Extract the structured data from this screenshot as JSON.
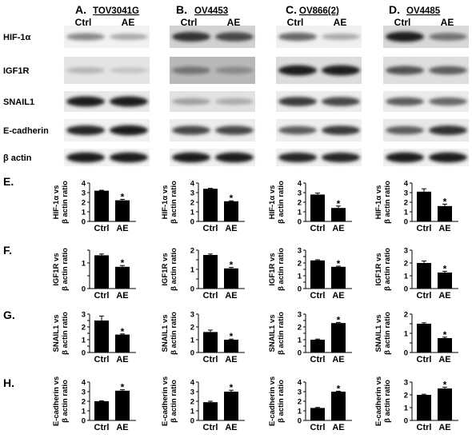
{
  "column_headers": [
    {
      "letter": "A.",
      "cell_line": "TOV3041G"
    },
    {
      "letter": "B.",
      "cell_line": "OV4453"
    },
    {
      "letter": "C.",
      "cell_line": "OV866(2)"
    },
    {
      "letter": "D.",
      "cell_line": "OV4485"
    }
  ],
  "lane_labels": [
    "Ctrl",
    "AE"
  ],
  "blot_rows": [
    "HIF-1α",
    "IGF1R",
    "SNAIL1",
    "E-cadherin",
    "β actin"
  ],
  "panel_letters": [
    "E.",
    "F.",
    "G.",
    "H."
  ],
  "star": "*",
  "chart_data": [
    {
      "type": "bar",
      "panel": "E.",
      "cell_line": "TOV3041G",
      "ylabel_line1": "HIF-1α vs",
      "ylabel_line2": "β actin ratio",
      "categories": [
        "Ctrl",
        "AE"
      ],
      "values": [
        3.2,
        2.2
      ],
      "errors": [
        0.05,
        0.1
      ],
      "significant": [
        false,
        true
      ],
      "ylim": [
        0,
        4
      ],
      "yticks": [
        0,
        1,
        2,
        3,
        4
      ]
    },
    {
      "type": "bar",
      "panel": "E.",
      "cell_line": "OV4453",
      "ylabel_line1": "HIF-1α vs",
      "ylabel_line2": "β actin ratio",
      "categories": [
        "Ctrl",
        "AE"
      ],
      "values": [
        3.4,
        2.1
      ],
      "errors": [
        0.05,
        0.05
      ],
      "significant": [
        false,
        true
      ],
      "ylim": [
        0,
        4
      ],
      "yticks": [
        0,
        1,
        2,
        3,
        4
      ]
    },
    {
      "type": "bar",
      "panel": "E.",
      "cell_line": "OV866(2)",
      "ylabel_line1": "HIF-1α vs",
      "ylabel_line2": "β actin ratio",
      "categories": [
        "Ctrl",
        "AE"
      ],
      "values": [
        2.8,
        1.4
      ],
      "errors": [
        0.15,
        0.2
      ],
      "significant": [
        false,
        true
      ],
      "ylim": [
        0,
        4
      ],
      "yticks": [
        0,
        1,
        2,
        3,
        4
      ]
    },
    {
      "type": "bar",
      "panel": "E.",
      "cell_line": "OV4485",
      "ylabel_line1": "HIF-1α vs",
      "ylabel_line2": "β actin ratio",
      "categories": [
        "Ctrl",
        "AE"
      ],
      "values": [
        3.1,
        1.6
      ],
      "errors": [
        0.3,
        0.2
      ],
      "significant": [
        false,
        true
      ],
      "ylim": [
        0,
        4
      ],
      "yticks": [
        0,
        1,
        2,
        3,
        4
      ]
    },
    {
      "type": "bar",
      "panel": "F.",
      "cell_line": "TOV3041G",
      "ylabel_line1": "IGF1R vs",
      "ylabel_line2": "β actin ratio",
      "categories": [
        "Ctrl",
        "AE"
      ],
      "values": [
        1.3,
        0.85
      ],
      "errors": [
        0.05,
        0.05
      ],
      "significant": [
        false,
        true
      ],
      "ylim": [
        0,
        1.5
      ],
      "yticks": [
        0,
        0.5,
        1,
        1.5
      ],
      "ytick_labels": [
        "0",
        "",
        "1",
        ""
      ]
    },
    {
      "type": "bar",
      "panel": "F.",
      "cell_line": "OV4453",
      "ylabel_line1": "IGF1R vs",
      "ylabel_line2": "β actin ratio",
      "categories": [
        "Ctrl",
        "AE"
      ],
      "values": [
        1.75,
        1.05
      ],
      "errors": [
        0.05,
        0.05
      ],
      "significant": [
        false,
        true
      ],
      "ylim": [
        0,
        2
      ],
      "yticks": [
        0,
        0.5,
        1,
        1.5,
        2
      ]
    },
    {
      "type": "bar",
      "panel": "F.",
      "cell_line": "OV866(2)",
      "ylabel_line1": "IGF1R vs",
      "ylabel_line2": "β actin ratio",
      "categories": [
        "Ctrl",
        "AE"
      ],
      "values": [
        2.2,
        1.7
      ],
      "errors": [
        0.05,
        0.05
      ],
      "significant": [
        false,
        true
      ],
      "ylim": [
        0,
        3
      ],
      "yticks": [
        0,
        0.5,
        1,
        1.5,
        2,
        2.5,
        3
      ]
    },
    {
      "type": "bar",
      "panel": "F.",
      "cell_line": "OV4485",
      "ylabel_line1": "IGF1R vs",
      "ylabel_line2": "β actin ratio",
      "categories": [
        "Ctrl",
        "AE"
      ],
      "values": [
        2.0,
        1.25
      ],
      "errors": [
        0.15,
        0.1
      ],
      "significant": [
        false,
        true
      ],
      "ylim": [
        0,
        3
      ],
      "yticks": [
        0,
        1,
        2,
        3
      ]
    },
    {
      "type": "bar",
      "panel": "G.",
      "cell_line": "TOV3041G",
      "ylabel_line1": "SNAIL1 vs",
      "ylabel_line2": "β actin ratio",
      "categories": [
        "Ctrl",
        "AE"
      ],
      "values": [
        2.5,
        1.4
      ],
      "errors": [
        0.35,
        0.05
      ],
      "significant": [
        false,
        true
      ],
      "ylim": [
        0,
        3
      ],
      "yticks": [
        0,
        0.5,
        1,
        1.5,
        2,
        2.5,
        3
      ]
    },
    {
      "type": "bar",
      "panel": "G.",
      "cell_line": "OV4453",
      "ylabel_line1": "SNAIL1 vs",
      "ylabel_line2": "β actin ratio",
      "categories": [
        "Ctrl",
        "AE"
      ],
      "values": [
        1.6,
        1.0
      ],
      "errors": [
        0.15,
        0.05
      ],
      "significant": [
        false,
        true
      ],
      "ylim": [
        0,
        3
      ],
      "yticks": [
        0,
        1,
        2,
        3
      ]
    },
    {
      "type": "bar",
      "panel": "G.",
      "cell_line": "OV866(2)",
      "ylabel_line1": "SNAIL1 vs",
      "ylabel_line2": "β actin ratio",
      "categories": [
        "Ctrl",
        "AE"
      ],
      "values": [
        1.0,
        2.3
      ],
      "errors": [
        0.05,
        0.05
      ],
      "significant": [
        false,
        true
      ],
      "ylim": [
        0,
        3
      ],
      "yticks": [
        0,
        0.5,
        1,
        1.5,
        2,
        2.5,
        3
      ]
    },
    {
      "type": "bar",
      "panel": "G.",
      "cell_line": "OV4485",
      "ylabel_line1": "SNAIL1 vs",
      "ylabel_line2": "β actin ratio",
      "categories": [
        "Ctrl",
        "AE"
      ],
      "values": [
        1.5,
        0.75
      ],
      "errors": [
        0.05,
        0.05
      ],
      "significant": [
        false,
        true
      ],
      "ylim": [
        0,
        2
      ],
      "yticks": [
        0,
        0.5,
        1,
        1.5,
        2
      ]
    },
    {
      "type": "bar",
      "panel": "H.",
      "cell_line": "TOV3041G",
      "ylabel_line1": "E-cadherin vs",
      "ylabel_line2": "β actin ratio",
      "categories": [
        "Ctrl",
        "AE"
      ],
      "values": [
        2.0,
        3.1
      ],
      "errors": [
        0.05,
        0.1
      ],
      "significant": [
        false,
        true
      ],
      "ylim": [
        0,
        4
      ],
      "yticks": [
        0,
        1,
        2,
        3,
        4
      ]
    },
    {
      "type": "bar",
      "panel": "H.",
      "cell_line": "OV4453",
      "ylabel_line1": "E-cadherin vs",
      "ylabel_line2": "β actin ratio",
      "categories": [
        "Ctrl",
        "AE"
      ],
      "values": [
        1.9,
        3.0
      ],
      "errors": [
        0.1,
        0.15
      ],
      "significant": [
        false,
        true
      ],
      "ylim": [
        0,
        4
      ],
      "yticks": [
        0,
        1,
        2,
        3,
        4
      ]
    },
    {
      "type": "bar",
      "panel": "H.",
      "cell_line": "OV866(2)",
      "ylabel_line1": "E-cadherin vs",
      "ylabel_line2": "β actin ratio",
      "categories": [
        "Ctrl",
        "AE"
      ],
      "values": [
        1.3,
        3.0
      ],
      "errors": [
        0.05,
        0.05
      ],
      "significant": [
        false,
        true
      ],
      "ylim": [
        0,
        4
      ],
      "yticks": [
        0,
        1,
        2,
        3,
        4
      ]
    },
    {
      "type": "bar",
      "panel": "H.",
      "cell_line": "OV4485",
      "ylabel_line1": "E-cadherin vs",
      "ylabel_line2": "β actin ratio",
      "categories": [
        "Ctrl",
        "AE"
      ],
      "values": [
        2.0,
        2.5
      ],
      "errors": [
        0.05,
        0.1
      ],
      "significant": [
        false,
        true
      ],
      "ylim": [
        0,
        3
      ],
      "yticks": [
        0,
        1,
        2,
        3
      ]
    }
  ]
}
